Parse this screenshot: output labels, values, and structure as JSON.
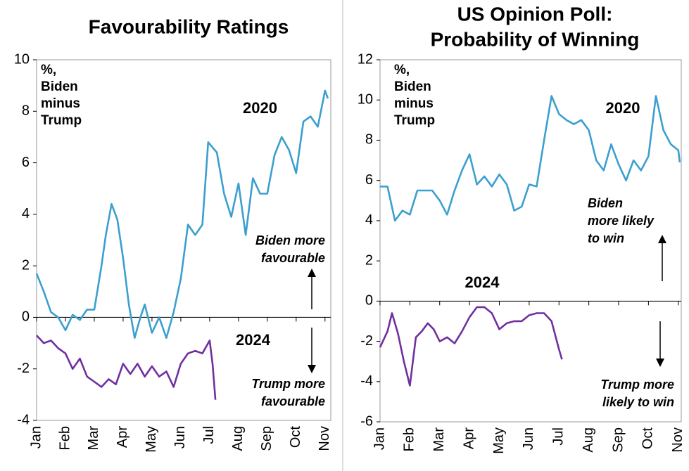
{
  "chart_data": [
    {
      "type": "line",
      "title": [
        "Favourability Ratings"
      ],
      "units_note": [
        "%,",
        "Biden",
        "minus",
        "Trump"
      ],
      "up_note": [
        "Biden more",
        "favourable"
      ],
      "down_note": [
        "Trump more",
        "favourable"
      ],
      "xlim": [
        0,
        10.2
      ],
      "xticks": [
        {
          "value": 0,
          "label": "Jan"
        },
        {
          "value": 1,
          "label": "Feb"
        },
        {
          "value": 2,
          "label": "Mar"
        },
        {
          "value": 3,
          "label": "Apr"
        },
        {
          "value": 4,
          "label": "May"
        },
        {
          "value": 5,
          "label": "Jun"
        },
        {
          "value": 6,
          "label": "Jul"
        },
        {
          "value": 7,
          "label": "Aug"
        },
        {
          "value": 8,
          "label": "Sep"
        },
        {
          "value": 9,
          "label": "Oct"
        },
        {
          "value": 10,
          "label": "Nov"
        }
      ],
      "ylim": [
        -4,
        10
      ],
      "yticks": [
        -4,
        -2,
        0,
        2,
        4,
        6,
        8,
        10
      ],
      "series": [
        {
          "name": "2020",
          "color": "#3b9fcf",
          "x": [
            0,
            0.25,
            0.5,
            0.75,
            1.0,
            1.25,
            1.5,
            1.75,
            2.0,
            2.25,
            2.4,
            2.6,
            2.8,
            3.0,
            3.2,
            3.4,
            3.6,
            3.75,
            4.0,
            4.25,
            4.5,
            4.75,
            5.0,
            5.25,
            5.5,
            5.75,
            5.95,
            6.25,
            6.5,
            6.75,
            7.0,
            7.25,
            7.5,
            7.75,
            8.0,
            8.25,
            8.5,
            8.75,
            9.0,
            9.25,
            9.5,
            9.75,
            10.0,
            10.1
          ],
          "values": [
            1.7,
            1.0,
            0.2,
            0.0,
            -0.5,
            0.1,
            -0.1,
            0.3,
            0.3,
            2.0,
            3.2,
            4.4,
            3.8,
            2.3,
            0.5,
            -0.8,
            0.0,
            0.5,
            -0.6,
            0.0,
            -0.8,
            0.2,
            1.5,
            3.6,
            3.2,
            3.6,
            6.8,
            6.4,
            4.8,
            3.9,
            5.2,
            3.2,
            5.4,
            4.8,
            4.8,
            6.3,
            7.0,
            6.5,
            5.6,
            7.6,
            7.8,
            7.4,
            8.8,
            8.5
          ]
        },
        {
          "name": "2024",
          "color": "#7030a0",
          "x": [
            0,
            0.25,
            0.5,
            0.75,
            1.0,
            1.25,
            1.5,
            1.75,
            2.0,
            2.25,
            2.5,
            2.75,
            3.0,
            3.25,
            3.5,
            3.75,
            4.0,
            4.25,
            4.5,
            4.75,
            5.0,
            5.25,
            5.5,
            5.75,
            6.0,
            6.1,
            6.2
          ],
          "values": [
            -0.7,
            -1.0,
            -0.9,
            -1.2,
            -1.4,
            -2.0,
            -1.6,
            -2.3,
            -2.5,
            -2.7,
            -2.4,
            -2.6,
            -1.8,
            -2.2,
            -1.8,
            -2.3,
            -1.9,
            -2.3,
            -2.1,
            -2.7,
            -1.8,
            -1.4,
            -1.3,
            -1.4,
            -0.9,
            -1.8,
            -3.2
          ]
        }
      ]
    },
    {
      "type": "line",
      "title": [
        "US Opinion Poll:",
        "Probability of Winning"
      ],
      "units_note": [
        "%,",
        "Biden",
        "minus",
        "Trump"
      ],
      "up_note": [
        "Biden",
        "more likely",
        "to win"
      ],
      "down_note": [
        "Trump more",
        "likely to win"
      ],
      "xlim": [
        0,
        10.1
      ],
      "xticks": [
        {
          "value": 0,
          "label": "Jan"
        },
        {
          "value": 1,
          "label": "Feb"
        },
        {
          "value": 2,
          "label": "Mar"
        },
        {
          "value": 3,
          "label": "Apr"
        },
        {
          "value": 4,
          "label": "May"
        },
        {
          "value": 5,
          "label": "Jun"
        },
        {
          "value": 6,
          "label": "Jul"
        },
        {
          "value": 7,
          "label": "Aug"
        },
        {
          "value": 8,
          "label": "Sep"
        },
        {
          "value": 9,
          "label": "Oct"
        },
        {
          "value": 10,
          "label": "Nov"
        }
      ],
      "ylim": [
        -6,
        12
      ],
      "yticks": [
        -6,
        -4,
        -2,
        0,
        2,
        4,
        6,
        8,
        10,
        12
      ],
      "series": [
        {
          "name": "2020",
          "color": "#3b9fcf",
          "x": [
            0,
            0.25,
            0.5,
            0.75,
            1.0,
            1.25,
            1.5,
            1.75,
            2.0,
            2.25,
            2.5,
            2.75,
            3.0,
            3.25,
            3.5,
            3.75,
            4.0,
            4.25,
            4.5,
            4.75,
            5.0,
            5.25,
            5.5,
            5.75,
            6.0,
            6.25,
            6.5,
            6.75,
            7.0,
            7.25,
            7.5,
            7.75,
            8.0,
            8.25,
            8.5,
            8.75,
            9.0,
            9.25,
            9.5,
            9.75,
            10.0,
            10.05
          ],
          "values": [
            5.7,
            5.7,
            4.0,
            4.5,
            4.3,
            5.5,
            5.5,
            5.5,
            5.0,
            4.3,
            5.5,
            6.5,
            7.3,
            5.8,
            6.2,
            5.7,
            6.3,
            5.8,
            4.5,
            4.7,
            5.8,
            5.7,
            8.0,
            10.2,
            9.3,
            9.0,
            8.8,
            9.0,
            8.5,
            7.0,
            6.5,
            7.8,
            6.8,
            6.0,
            7.0,
            6.5,
            7.2,
            10.2,
            8.5,
            7.8,
            7.5,
            6.9
          ]
        },
        {
          "name": "2024",
          "color": "#7030a0",
          "x": [
            0,
            0.25,
            0.4,
            0.6,
            0.8,
            1.0,
            1.2,
            1.4,
            1.6,
            1.8,
            2.0,
            2.25,
            2.5,
            2.75,
            3.0,
            3.25,
            3.5,
            3.75,
            4.0,
            4.25,
            4.5,
            4.75,
            5.0,
            5.25,
            5.5,
            5.75,
            6.0,
            6.1
          ],
          "values": [
            -2.3,
            -1.5,
            -0.6,
            -1.6,
            -3.0,
            -4.2,
            -1.8,
            -1.5,
            -1.1,
            -1.4,
            -2.0,
            -1.8,
            -2.1,
            -1.5,
            -0.8,
            -0.3,
            -0.3,
            -0.6,
            -1.4,
            -1.1,
            -1.0,
            -1.0,
            -0.7,
            -0.6,
            -0.6,
            -1.0,
            -2.4,
            -2.9
          ]
        }
      ]
    }
  ]
}
